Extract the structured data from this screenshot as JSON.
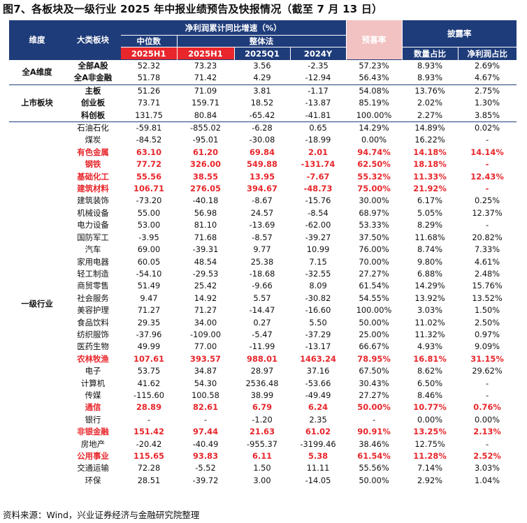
{
  "title": "图7、各板块及一级行业 2025 年中报业绩预告及快报情况（截至 7 月 13 日）",
  "header": {
    "dim": "维度",
    "category": "大类板块",
    "profit_group": "净利润累计同比增速（%）",
    "median": "中位数",
    "overall": "整体法",
    "yuxi": "预喜率",
    "disclosure": "披露率",
    "cols": [
      "2025H1",
      "2025H1",
      "2025Q1",
      "2024Y"
    ],
    "count_ratio": "数量占比",
    "profit_ratio": "净利润占比"
  },
  "groups": [
    {
      "dim": "全A维度",
      "rows": [
        {
          "name": "全部A股",
          "v": [
            "52.32",
            "73.23",
            "3.56",
            "-2.35",
            "57.23%",
            "8.93%",
            "2.69%"
          ],
          "hl": false
        },
        {
          "name": "全A非金融",
          "v": [
            "51.78",
            "71.42",
            "4.29",
            "-12.94",
            "56.43%",
            "8.93%",
            "4.67%"
          ],
          "hl": false
        }
      ]
    },
    {
      "dim": "上市板块",
      "rows": [
        {
          "name": "主板",
          "v": [
            "51.26",
            "71.09",
            "3.81",
            "-1.17",
            "54.08%",
            "13.76%",
            "2.75%"
          ],
          "hl": false
        },
        {
          "name": "创业板",
          "v": [
            "73.71",
            "159.71",
            "18.52",
            "-13.87",
            "85.19%",
            "2.02%",
            "1.30%"
          ],
          "hl": false
        },
        {
          "name": "科创板",
          "v": [
            "131.75",
            "80.84",
            "-65.42",
            "-41.81",
            "100.00%",
            "2.27%",
            "3.85%"
          ],
          "hl": false
        }
      ]
    },
    {
      "dim": "一级行业",
      "rows": [
        {
          "name": "石油石化",
          "v": [
            "-59.81",
            "-855.02",
            "-6.28",
            "0.65",
            "14.29%",
            "14.89%",
            "0.02%"
          ],
          "hl": false
        },
        {
          "name": "煤炭",
          "v": [
            "-84.52",
            "-95.01",
            "-30.08",
            "-18.99",
            "0.00%",
            "16.22%",
            "-"
          ],
          "hl": false
        },
        {
          "name": "有色金属",
          "v": [
            "63.10",
            "61.20",
            "69.84",
            "2.01",
            "94.74%",
            "14.18%",
            "14.14%"
          ],
          "hl": true
        },
        {
          "name": "钢铁",
          "v": [
            "77.72",
            "326.00",
            "549.88",
            "-131.74",
            "62.50%",
            "18.18%",
            "-"
          ],
          "hl": true
        },
        {
          "name": "基础化工",
          "v": [
            "55.56",
            "38.55",
            "13.95",
            "-7.67",
            "55.32%",
            "11.33%",
            "12.43%"
          ],
          "hl": true
        },
        {
          "name": "建筑材料",
          "v": [
            "106.71",
            "276.05",
            "394.67",
            "-48.73",
            "75.00%",
            "21.92%",
            "-"
          ],
          "hl": true
        },
        {
          "name": "建筑装饰",
          "v": [
            "-73.20",
            "-40.18",
            "-8.67",
            "-15.76",
            "30.00%",
            "6.17%",
            "0.25%"
          ],
          "hl": false
        },
        {
          "name": "机械设备",
          "v": [
            "55.00",
            "56.98",
            "24.57",
            "-8.54",
            "68.97%",
            "5.05%",
            "12.37%"
          ],
          "hl": false
        },
        {
          "name": "电力设备",
          "v": [
            "53.00",
            "81.10",
            "-13.69",
            "-62.00",
            "53.33%",
            "8.29%",
            "-"
          ],
          "hl": false
        },
        {
          "name": "国防军工",
          "v": [
            "-3.95",
            "71.68",
            "-8.57",
            "-39.27",
            "37.50%",
            "11.68%",
            "20.82%"
          ],
          "hl": false
        },
        {
          "name": "汽车",
          "v": [
            "69.00",
            "-39.31",
            "9.77",
            "10.99",
            "76.00%",
            "8.74%",
            "7.33%"
          ],
          "hl": false
        },
        {
          "name": "家用电器",
          "v": [
            "60.05",
            "48.54",
            "25.38",
            "7.15",
            "70.00%",
            "9.80%",
            "4.61%"
          ],
          "hl": false
        },
        {
          "name": "轻工制造",
          "v": [
            "-54.10",
            "-29.53",
            "-18.68",
            "-32.55",
            "27.27%",
            "6.88%",
            "2.48%"
          ],
          "hl": false
        },
        {
          "name": "商贸零售",
          "v": [
            "51.49",
            "25.42",
            "-9.66",
            "8.09",
            "61.54%",
            "14.29%",
            "15.76%"
          ],
          "hl": false
        },
        {
          "name": "社会服务",
          "v": [
            "9.47",
            "14.92",
            "5.57",
            "-30.82",
            "54.55%",
            "13.92%",
            "13.52%"
          ],
          "hl": false
        },
        {
          "name": "美容护理",
          "v": [
            "71.27",
            "71.27",
            "-14.47",
            "-16.60",
            "100.00%",
            "3.03%",
            "1.50%"
          ],
          "hl": false
        },
        {
          "name": "食品饮料",
          "v": [
            "29.35",
            "34.00",
            "0.27",
            "5.50",
            "50.00%",
            "11.02%",
            "2.50%"
          ],
          "hl": false
        },
        {
          "name": "纺织服饰",
          "v": [
            "-37.96",
            "-109.00",
            "-5.47",
            "-37.29",
            "25.00%",
            "11.32%",
            "0.97%"
          ],
          "hl": false
        },
        {
          "name": "医药生物",
          "v": [
            "49.99",
            "77.00",
            "-11.99",
            "-13.17",
            "66.67%",
            "4.93%",
            "9.09%"
          ],
          "hl": false
        },
        {
          "name": "农林牧渔",
          "v": [
            "107.61",
            "393.57",
            "988.01",
            "1463.24",
            "78.95%",
            "16.81%",
            "31.15%"
          ],
          "hl": true
        },
        {
          "name": "电子",
          "v": [
            "53.75",
            "34.87",
            "28.97",
            "37.16",
            "67.50%",
            "8.62%",
            "29.62%"
          ],
          "hl": false
        },
        {
          "name": "计算机",
          "v": [
            "41.62",
            "54.30",
            "2536.48",
            "-53.66",
            "30.43%",
            "6.50%",
            "-"
          ],
          "hl": false
        },
        {
          "name": "传媒",
          "v": [
            "-115.60",
            "100.58",
            "38.99",
            "-49.49",
            "27.27%",
            "8.46%",
            "-"
          ],
          "hl": false
        },
        {
          "name": "通信",
          "v": [
            "28.89",
            "82.61",
            "6.79",
            "6.24",
            "50.00%",
            "10.77%",
            "0.76%"
          ],
          "hl": true
        },
        {
          "name": "银行",
          "v": [
            "-",
            "-",
            "-1.20",
            "2.35",
            "-",
            "0.00%",
            "0.00%"
          ],
          "hl": false
        },
        {
          "name": "非银金融",
          "v": [
            "151.42",
            "97.44",
            "21.63",
            "61.02",
            "90.91%",
            "13.25%",
            "2.13%"
          ],
          "hl": true
        },
        {
          "name": "房地产",
          "v": [
            "-20.42",
            "-40.49",
            "-955.37",
            "-3199.46",
            "38.46%",
            "12.75%",
            "-"
          ],
          "hl": false
        },
        {
          "name": "公用事业",
          "v": [
            "115.65",
            "93.83",
            "6.11",
            "5.38",
            "61.54%",
            "11.28%",
            "2.52%"
          ],
          "hl": true
        },
        {
          "name": "交通运输",
          "v": [
            "72.28",
            "-5.52",
            "1.50",
            "11.11",
            "55.56%",
            "7.14%",
            "3.03%"
          ],
          "hl": false
        },
        {
          "name": "环保",
          "v": [
            "28.51",
            "-39.72",
            "3.00",
            "-14.05",
            "50.00%",
            "2.92%",
            "1.04%"
          ],
          "hl": false
        }
      ]
    }
  ],
  "footer": "资料来源：Wind，兴业证券经济与金融研究院整理"
}
